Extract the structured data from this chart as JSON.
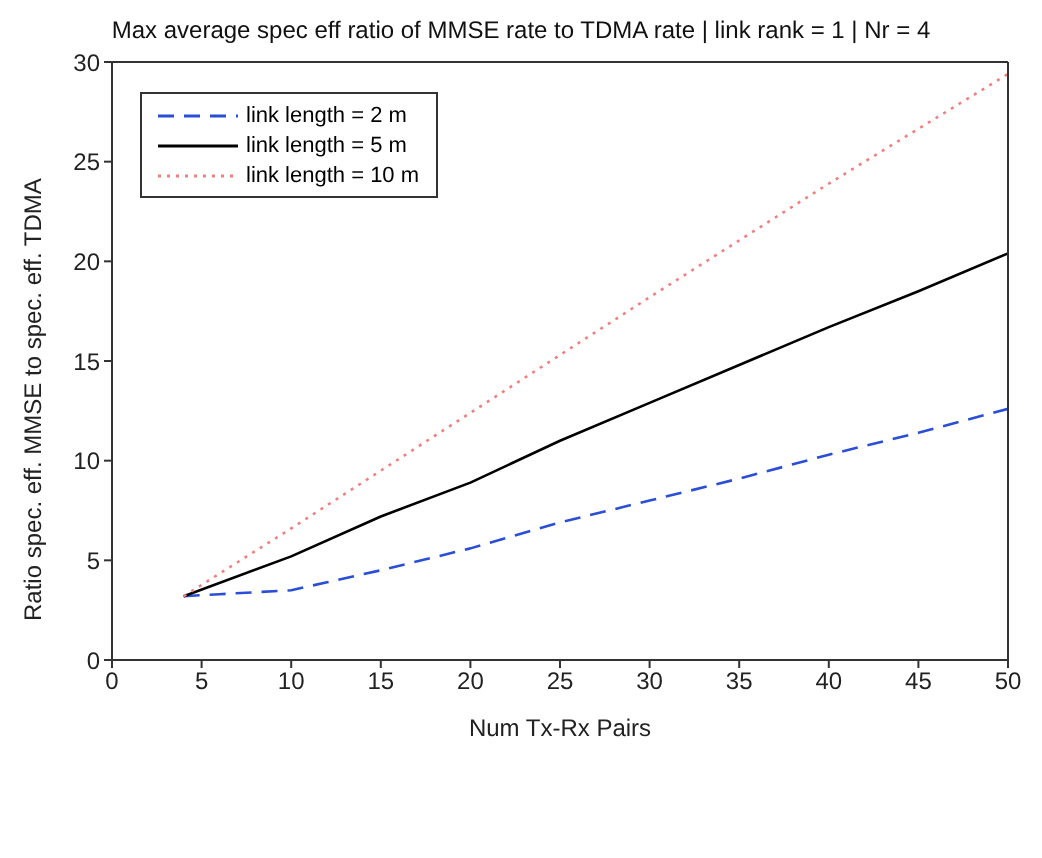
{
  "chart_data": {
    "type": "line",
    "title": "Max average spec eff ratio of MMSE rate to TDMA rate | link rank = 1 | Nr = 4",
    "xlabel": "Num Tx-Rx Pairs",
    "ylabel": "Ratio spec. eff. MMSE to spec. eff. TDMA",
    "xlim": [
      0,
      50
    ],
    "xticks": [
      0,
      5,
      10,
      15,
      20,
      25,
      30,
      35,
      40,
      45,
      50
    ],
    "ylim": [
      0,
      30
    ],
    "yticks": [
      0,
      5,
      10,
      15,
      20,
      25,
      30
    ],
    "grid": false,
    "legend": "top left",
    "marker": "none",
    "series": [
      {
        "name": "link length = 2 m",
        "color": "#2a4fd6",
        "line_style": "dashed",
        "x": [
          4,
          6,
          8,
          10,
          12,
          15,
          20,
          25,
          30,
          35,
          40,
          45,
          50
        ],
        "values": [
          3.2,
          3.3,
          3.4,
          3.5,
          3.9,
          4.5,
          5.6,
          6.9,
          8.0,
          9.1,
          10.3,
          11.4,
          12.6
        ]
      },
      {
        "name": "link length = 5 m",
        "color": "#000000",
        "line_style": "solid",
        "x": [
          4,
          10,
          15,
          20,
          25,
          30,
          35,
          40,
          45,
          50
        ],
        "values": [
          3.2,
          5.2,
          7.2,
          8.9,
          11.0,
          12.9,
          14.8,
          16.7,
          18.5,
          20.4
        ]
      },
      {
        "name": "link length = 10 m",
        "color": "#f08080",
        "line_style": "dotted",
        "x": [
          4,
          10,
          20,
          30,
          40,
          50
        ],
        "values": [
          3.2,
          6.6,
          12.4,
          18.2,
          23.9,
          29.4
        ]
      }
    ]
  }
}
